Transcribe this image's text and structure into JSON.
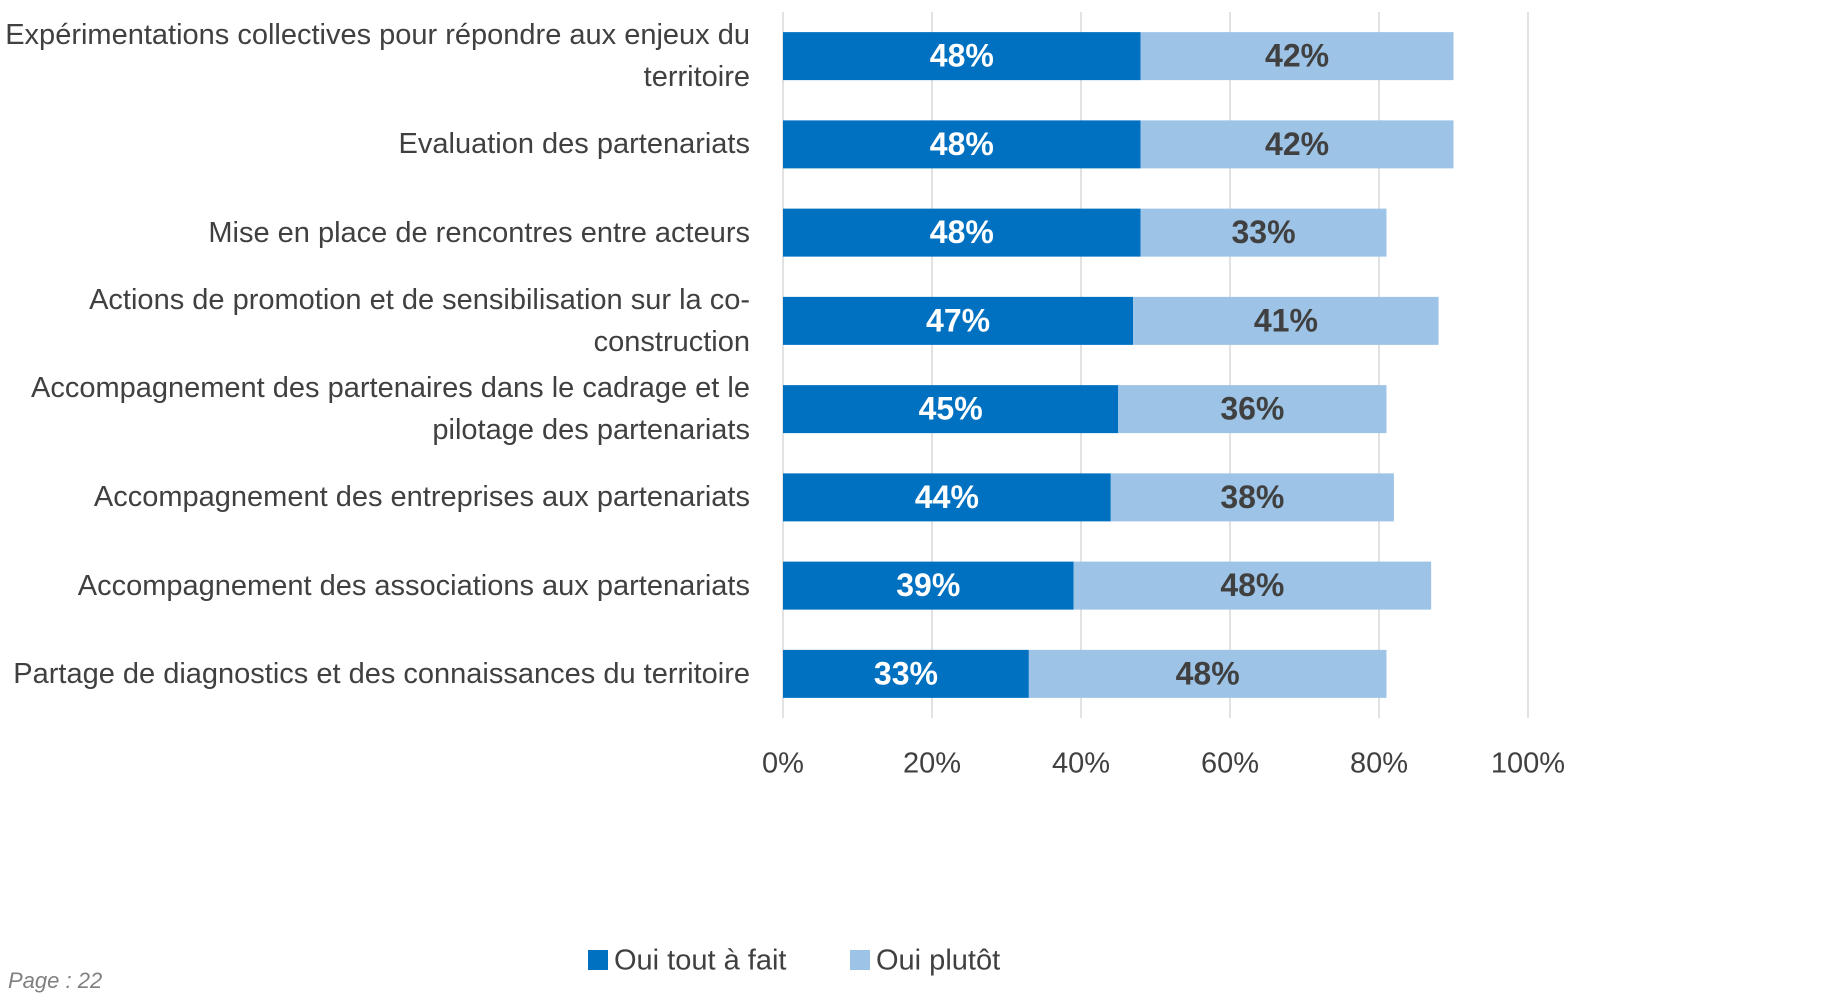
{
  "chart_data": {
    "type": "stacked_barh",
    "categories": [
      "Expérimentations collectives pour répondre aux enjeux du territoire",
      "Evaluation des partenariats",
      "Mise en place de rencontres entre acteurs",
      "Actions de promotion et de sensibilisation sur la co-construction",
      "Accompagnement des partenaires dans le cadrage et le pilotage des partenariats",
      "Accompagnement des entreprises aux partenariats",
      "Accompagnement des associations aux partenariats",
      "Partage de diagnostics et des connaissances du territoire"
    ],
    "series": [
      {
        "name": "Oui tout à fait",
        "color": "#0070c0",
        "label_color": "#ffffff",
        "values": [
          48,
          48,
          48,
          47,
          45,
          44,
          39,
          33
        ],
        "value_labels": [
          "48%",
          "48%",
          "48%",
          "47%",
          "45%",
          "44%",
          "39%",
          "33%"
        ]
      },
      {
        "name": "Oui plutôt",
        "color": "#9dc3e6",
        "label_color": "#404040",
        "values": [
          42,
          42,
          33,
          41,
          36,
          38,
          48,
          48
        ],
        "value_labels": [
          "42%",
          "42%",
          "33%",
          "41%",
          "36%",
          "38%",
          "48%",
          "48%"
        ]
      }
    ],
    "xlim": [
      0,
      100
    ],
    "xticks": [
      {
        "value": 0,
        "label": "0%"
      },
      {
        "value": 20,
        "label": "20%"
      },
      {
        "value": 40,
        "label": "40%"
      },
      {
        "value": 60,
        "label": "60%"
      },
      {
        "value": 80,
        "label": "80%"
      },
      {
        "value": 100,
        "label": "100%"
      }
    ],
    "grid": true,
    "legend": "bottom"
  },
  "footer": "Page : 22"
}
